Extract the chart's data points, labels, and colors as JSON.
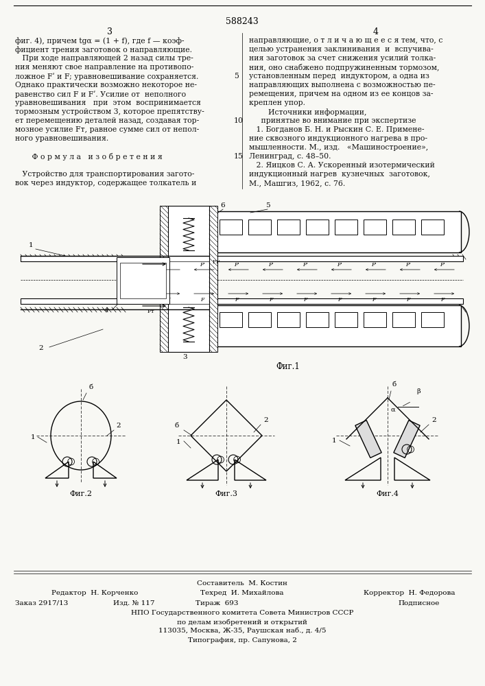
{
  "patent_number": "588243",
  "page_left": "3",
  "page_right": "4",
  "bg_color": "#f8f8f4",
  "text_color": "#1a1a1a",
  "col_left_text": [
    "фиг. 4), причем tgα = (1 + f), где f — коэф-",
    "фициент трения заготовок о направляющие.",
    "   При ходе направляющей 2 назад силы тре-",
    "ния меняют свое направление на противопо-",
    "ложное Fʹ и F; уравновешивание сохраняется.",
    "Однако практически возможно некоторое не-",
    "равенство сил F и Fʹ. Усилие от  неполного",
    "уравновешивания   при  этом  воспринимается",
    "тормозным устройством 3, которое препятству-",
    "ет перемещению деталей назад, создавая тор-",
    "мозное усилие Fт, равное сумме сил от непол-",
    "ного уравновешивания.",
    "",
    "       Ф о р м у л а   и з о б р е т е н и я",
    "",
    "   Устройство для транспортирования загото-",
    "вок через индуктор, содержащее толкатель и"
  ],
  "col_right_text": [
    "направляющие, о т л и ч а ю щ е е с я тем, что, с",
    "целью устранения заклинивания  и  вспучива-",
    "ния заготовок за счет снижения усилий толка-",
    "ния, оно снабжено подпружиненным тормозом,",
    "установленным перед  индуктором, а одна из",
    "направляющих выполнена с возможностью пе-",
    "ремещения, причем на одном из ее концов за-",
    "креплен упор.",
    "        Источники информации,",
    "     принятые во внимание при экспертизе",
    "   1. Богданов Б. Н. и Рыскин С. Е. Примене-",
    "ние сквозного индукционного нагрева в про-",
    "мышленности. М., изд.   «Машиностроение»,",
    "Ленинград, с. 48–50.",
    "   2. Яицков С. А. Ускоренный изотермический",
    "индукционный нагрев  кузнечных  заготовок,",
    "М., Машгиз, 1962, с. 76."
  ],
  "line_numbers": {
    "4": "5",
    "9": "10",
    "13": "15"
  },
  "fig1_caption": "Фиг.1",
  "fig2_caption": "Фиг.2",
  "fig3_caption": "Фиг.3",
  "fig4_caption": "Фиг.4",
  "footer_composer": "Составитель  М. Костин",
  "footer_editor": "Редактор  Н. Корченко",
  "footer_techr": "Техред  И. Михайлова",
  "footer_corrector": "Корректор  Н. Федорова",
  "footer_order": "Заказ 2917/13",
  "footer_izd": "Изд. № 117",
  "footer_tirazh": "Тираж  693",
  "footer_podpisnoe": "Подписное",
  "footer_npo": "НПО Государственного комитета Совета Министров СССР",
  "footer_po": "по делам изобретений и открытий",
  "footer_addr": "113035, Москва, Ж-35, Раушская наб., д. 4/5",
  "footer_tipograf": "Типография, пр. Сапунова, 2"
}
